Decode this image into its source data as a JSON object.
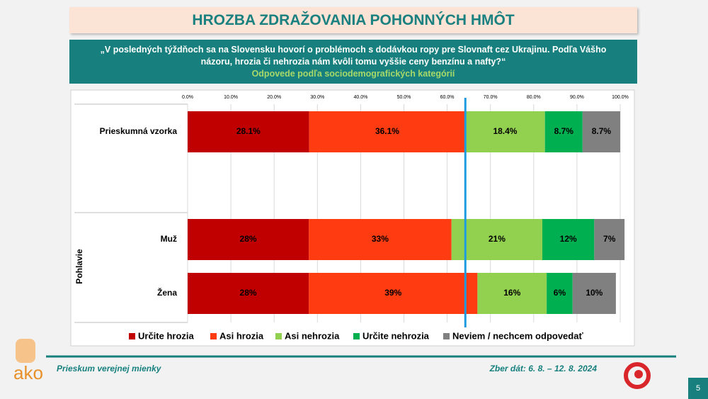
{
  "header": {
    "title": "HROZBA ZDRAŽOVANIA POHONNÝCH HMÔT",
    "question": "„V posledných týždňoch sa na Slovensku hovorí o problémoch s dodávkou ropy pre Slovnaft cez Ukrajinu. Podľa Vášho názoru, hrozia či nehrozia nám kvôli tomu vyššie ceny benzínu a nafty?“",
    "subtitle": "Odpovede podľa sociodemografických kategórií"
  },
  "chart_data": {
    "type": "bar",
    "orientation": "horizontal",
    "stacked": true,
    "categories": [
      "Prieskumná vzorka",
      "Muž",
      "Žena"
    ],
    "group_label": "Pohlavie",
    "xlim": [
      0,
      100
    ],
    "xticks": [
      {
        "value": 0,
        "label": "0.0%"
      },
      {
        "value": 10,
        "label": "10.0%"
      },
      {
        "value": 20,
        "label": "20.0%"
      },
      {
        "value": 30,
        "label": "30.0%"
      },
      {
        "value": 40,
        "label": "40.0%"
      },
      {
        "value": 50,
        "label": "50.0%"
      },
      {
        "value": 60,
        "label": "60.0%"
      },
      {
        "value": 70,
        "label": "70.0%"
      },
      {
        "value": 80,
        "label": "80.0%"
      },
      {
        "value": 90,
        "label": "90.0%"
      },
      {
        "value": 100,
        "label": "100.0%"
      }
    ],
    "grid": true,
    "legend": "bottom",
    "series": [
      {
        "name": "Určite hrozia",
        "color": "#c00000",
        "values": [
          28.1,
          28,
          28
        ],
        "value_labels": [
          "28.1%",
          "28%",
          "28%"
        ]
      },
      {
        "name": "Asi hrozia",
        "color": "#ff3b12",
        "values": [
          36.1,
          33,
          39
        ],
        "value_labels": [
          "36.1%",
          "33%",
          "39%"
        ]
      },
      {
        "name": "Asi nehrozia",
        "color": "#92d050",
        "values": [
          18.4,
          21,
          16
        ],
        "value_labels": [
          "18.4%",
          "21%",
          "16%"
        ]
      },
      {
        "name": "Určite nehrozia",
        "color": "#00b050",
        "values": [
          8.7,
          12,
          6
        ],
        "value_labels": [
          "8.7%",
          "12%",
          "6%"
        ]
      },
      {
        "name": "Neviem / nechcem odpovedať",
        "color": "#808080",
        "values": [
          8.7,
          7,
          10
        ],
        "value_labels": [
          "8.7%",
          "7%",
          "10%"
        ]
      }
    ]
  },
  "footer": {
    "left": "Prieskum verejnej mienky",
    "right": "Zber dát: 6. 8. – 12. 8. 2024",
    "logo": "ako",
    "page": "5"
  }
}
